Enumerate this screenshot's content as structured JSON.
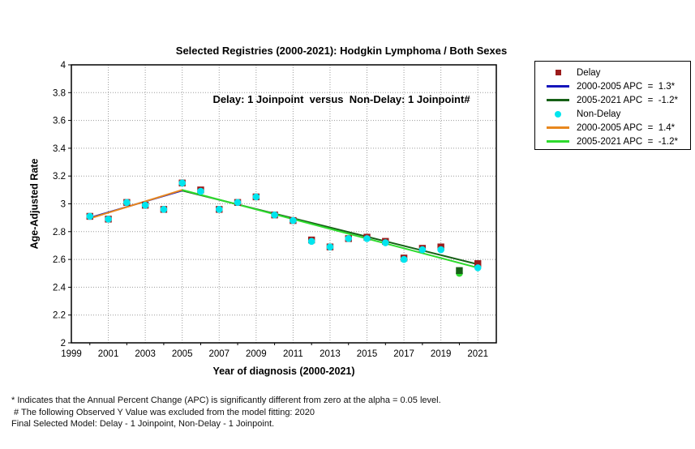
{
  "title": {
    "line1": "Selected Registries (2000-2021): Hodgkin Lymphoma / Both Sexes",
    "line2": "Delay: 1 Joinpoint  versus  Non-Delay: 1 Joinpoint#"
  },
  "axes": {
    "y_label": "Age-Adjusted Rate",
    "x_label": "Year of diagnosis (2000-2021)",
    "y_ticks": [
      4,
      3.8,
      3.6,
      3.4,
      3.2,
      3,
      2.8,
      2.6,
      2.4,
      2.2,
      2
    ],
    "x_tick_labels": [
      1999,
      2001,
      2003,
      2005,
      2007,
      2009,
      2011,
      2013,
      2015,
      2017,
      2019,
      2021
    ]
  },
  "legend": {
    "items": [
      {
        "type": "square",
        "color": "#9B1C1C",
        "label": "Delay"
      },
      {
        "type": "line",
        "color": "#1515BB",
        "label": "2000-2005 APC  =  1.3*"
      },
      {
        "type": "line",
        "color": "#166016",
        "label": "2005-2021 APC  =  -1.2*"
      },
      {
        "type": "circle",
        "color": "#00E5EE",
        "label": "Non-Delay"
      },
      {
        "type": "line",
        "color": "#E8871E",
        "label": "2000-2005 APC  =  1.4*"
      },
      {
        "type": "line",
        "color": "#2EDB2E",
        "label": "2005-2021 APC  =  -1.2*"
      }
    ]
  },
  "chart_data": {
    "type": "scatter",
    "title": "Selected Registries (2000-2021): Hodgkin Lymphoma / Both Sexes — Delay: 1 Joinpoint versus Non-Delay: 1 Joinpoint#",
    "xlabel": "Year of diagnosis (2000-2021)",
    "ylabel": "Age-Adjusted Rate",
    "xlim": [
      1999,
      2022
    ],
    "ylim": [
      2,
      4
    ],
    "grid": "dotted",
    "legend_position": "outside-right",
    "x": [
      2000,
      2001,
      2002,
      2003,
      2004,
      2005,
      2006,
      2007,
      2008,
      2009,
      2010,
      2011,
      2012,
      2013,
      2014,
      2015,
      2016,
      2017,
      2018,
      2019,
      2020,
      2021
    ],
    "series": [
      {
        "name": "Delay",
        "marker": "square",
        "color": "#9B1C1C",
        "values": [
          2.91,
          2.89,
          3.01,
          2.99,
          2.96,
          3.15,
          3.1,
          2.96,
          3.01,
          3.05,
          2.92,
          2.88,
          2.74,
          2.69,
          2.75,
          2.76,
          2.73,
          2.61,
          2.68,
          2.69,
          2.52,
          2.57
        ]
      },
      {
        "name": "Non-Delay",
        "marker": "circle",
        "color": "#00E5EE",
        "values": [
          2.91,
          2.89,
          3.01,
          2.99,
          2.96,
          3.15,
          3.09,
          2.96,
          3.01,
          3.05,
          2.92,
          2.88,
          2.73,
          2.69,
          2.75,
          2.75,
          2.72,
          2.6,
          2.67,
          2.67,
          2.5,
          2.54
        ]
      }
    ],
    "excluded": {
      "year": 2020,
      "delay_color": "#166016",
      "nondelay_color": "#2EDB2E",
      "note": "Observed Y Value excluded from model fitting"
    },
    "regression_lines": [
      {
        "series": "Delay",
        "apc_label": "2000-2005 APC = 1.3*",
        "x1": 2000,
        "y1": 2.9,
        "x2": 2005,
        "y2": 3.095,
        "color": "#1515BB"
      },
      {
        "series": "Delay",
        "apc_label": "2005-2021 APC = -1.2*",
        "x1": 2005,
        "y1": 3.095,
        "x2": 2021,
        "y2": 2.565,
        "color": "#166016"
      },
      {
        "series": "Non-Delay",
        "apc_label": "2000-2005 APC = 1.4*",
        "x1": 2000,
        "y1": 2.895,
        "x2": 2005,
        "y2": 3.1,
        "color": "#E8871E"
      },
      {
        "series": "Non-Delay",
        "apc_label": "2005-2021 APC = -1.2*",
        "x1": 2005,
        "y1": 3.1,
        "x2": 2021,
        "y2": 2.54,
        "color": "#2EDB2E"
      }
    ]
  },
  "footnotes": [
    "* Indicates that the Annual Percent Change (APC) is significantly different from zero at the alpha = 0.05 level.",
    " # The following Observed Y Value was excluded from the model fitting: 2020",
    "Final Selected Model: Delay - 1 Joinpoint, Non-Delay - 1 Joinpoint."
  ]
}
